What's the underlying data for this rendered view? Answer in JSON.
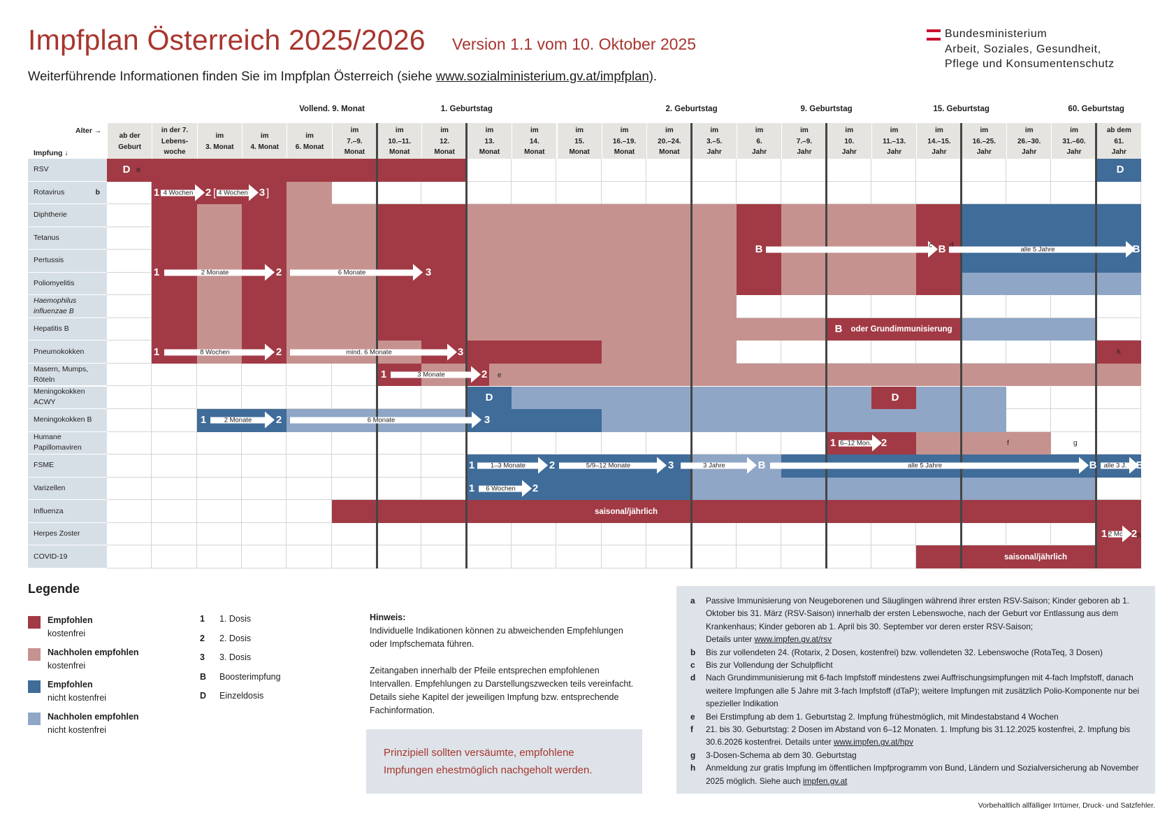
{
  "header": {
    "title": "Impfplan Österreich 2025/2026",
    "version": "Version 1.1 vom 10. Oktober 2025",
    "info_prefix": "Weiterführende Informationen finden Sie im Impfplan Österreich (siehe ",
    "info_link": "www.sozialministerium.gv.at/impfplan",
    "info_suffix": ")."
  },
  "ministry": {
    "line1": "Bundesministerium",
    "line2": "Arbeit, Soziales, Gesundheit,",
    "line3": "Pflege und Konsumentenschutz"
  },
  "axis": {
    "age": "Alter →",
    "vaccine": "Impfung ↓"
  },
  "milestones": [
    "Vollend. 9. Monat",
    "1. Geburtstag",
    "2. Geburtstag",
    "9. Geburtstag",
    "15. Geburtstag",
    "60. Geburtstag"
  ],
  "columns": [
    [
      "ab der",
      "Geburt"
    ],
    [
      "in der 7.",
      "Lebens-",
      "woche"
    ],
    [
      "im",
      "3. Monat"
    ],
    [
      "im",
      "4. Monat"
    ],
    [
      "im",
      "6. Monat"
    ],
    [
      "im",
      "7.–9.",
      "Monat"
    ],
    [
      "im",
      "10.–11.",
      "Monat"
    ],
    [
      "im",
      "12.",
      "Monat"
    ],
    [
      "im",
      "13.",
      "Monat"
    ],
    [
      "im",
      "14.",
      "Monat"
    ],
    [
      "im",
      "15.",
      "Monat"
    ],
    [
      "im",
      "16.–19.",
      "Monat"
    ],
    [
      "im",
      "20.–24.",
      "Monat"
    ],
    [
      "im",
      "3.–5.",
      "Jahr"
    ],
    [
      "im",
      "6.",
      "Jahr"
    ],
    [
      "im",
      "7.–9.",
      "Jahr"
    ],
    [
      "im",
      "10.",
      "Jahr"
    ],
    [
      "im",
      "11.–13.",
      "Jahr"
    ],
    [
      "im",
      "14.–15.",
      "Jahr"
    ],
    [
      "im",
      "16.–25.",
      "Jahr"
    ],
    [
      "im",
      "26.–30.",
      "Jahr"
    ],
    [
      "im",
      "31.–60.",
      "Jahr"
    ],
    [
      "ab dem",
      "61.",
      "Jahr"
    ]
  ],
  "rows": [
    {
      "label": "RSV",
      "note": "b_none"
    },
    {
      "label": "Rotavirus",
      "note": "b"
    },
    {
      "label": "Diphtherie"
    },
    {
      "label": "Tetanus"
    },
    {
      "label": "Pertussis"
    },
    {
      "label": "Poliomyelitis"
    },
    {
      "label": "Haemophilus influenzae B"
    },
    {
      "label": "Hepatitis B"
    },
    {
      "label": "Pneumokokken"
    },
    {
      "label": "Masern, Mumps, Röteln"
    },
    {
      "label": "Meningokokken ACWY"
    },
    {
      "label": "Meningokokken B"
    },
    {
      "label": "Humane Papillomaviren"
    },
    {
      "label": "FSME"
    },
    {
      "label": "Varizellen"
    },
    {
      "label": "Influenza"
    },
    {
      "label": "Herpes Zoster"
    },
    {
      "label": "COVID-19"
    }
  ],
  "schedule_text": {
    "w4": "4 Wochen",
    "m2": "2 Monate",
    "m6": "6 Monate",
    "w8": "8 Wochen",
    "mind6": "mind. 6 Monate",
    "m3": "3 Monate",
    "m1_3": "1–3 Monate",
    "m5_9_12": "5/9–12 Monate",
    "j3": "3 Jahre",
    "j5": "alle 5 Jahre",
    "j3short": "alle 3 J.",
    "w6": "6 Wochen",
    "mon6_12": "6–12 Mon.",
    "mon2": "2 Mon.",
    "oder": "oder Grundimmunisierung",
    "saisonal": "saisonal/jährlich"
  },
  "legend": {
    "title": "Legende",
    "items": [
      {
        "bold": "Empfohlen",
        "sub": "kostenfrei",
        "color": "#a13a45"
      },
      {
        "bold": "Nachholen empfohlen",
        "sub": "kostenfrei",
        "color": "#c6928f"
      },
      {
        "bold": "Empfohlen",
        "sub": "nicht kostenfrei",
        "color": "#3f6c99"
      },
      {
        "bold": "Nachholen empfohlen",
        "sub": "nicht kostenfrei",
        "color": "#8fa6c6"
      }
    ],
    "doses": [
      {
        "k": "1",
        "v": "1. Dosis"
      },
      {
        "k": "2",
        "v": "2. Dosis"
      },
      {
        "k": "3",
        "v": "3. Dosis"
      },
      {
        "k": "B",
        "v": "Boosterimpfung"
      },
      {
        "k": "D",
        "v": "Einzeldosis"
      }
    ]
  },
  "hinweis": {
    "title": "Hinweis:",
    "p1": "Individuelle Indikationen können zu abweichenden Empfehlungen oder Impfschemata führen.",
    "p2": "Zeitangaben innerhalb der Pfeile entsprechen empfohlenen Intervallen. Empfehlungen zu Darstellungszwecken teils vereinfacht. Details siehe Kapitel der jeweiligen Impfung bzw. entsprechende Fachinformation."
  },
  "catchup": "Prinzipiell sollten versäumte, empfohlene Impfungen ehestmöglich nachgeholt werden.",
  "footnotes": [
    {
      "k": "a",
      "t": "Passive Immunisierung von Neugeborenen und Säuglingen während ihrer ersten RSV-Saison; Kinder geboren ab 1. Oktober bis 31. März (RSV-Saison) innerhalb der ersten Lebenswoche, nach der Geburt vor Entlassung aus dem Krankenhaus; Kinder geboren ab 1. April bis 30. September vor deren erster RSV-Saison;",
      "t2": "Details unter ",
      "link": "www.impfen.gv.at/rsv"
    },
    {
      "k": "b",
      "t": "Bis zur vollendeten 24. (Rotarix, 2 Dosen, kostenfrei) bzw. vollendeten 32. Lebenswoche (RotaTeq, 3 Dosen)"
    },
    {
      "k": "c",
      "t": "Bis zur Vollendung der Schulpflicht"
    },
    {
      "k": "d",
      "t": "Nach Grundimmunisierung mit 6-fach Impfstoff mindestens zwei Auffrischungsimpfungen mit 4-fach Impfstoff, danach weitere Impfungen alle 5 Jahre mit 3-fach Impfstoff (dTaP); weitere Impfungen mit zusätzlich Polio-Komponente nur bei spezieller Indikation"
    },
    {
      "k": "e",
      "t": "Bei Erstimpfung ab dem 1. Geburtstag 2. Impfung frühestmöglich, mit Mindestabstand 4 Wochen"
    },
    {
      "k": "f",
      "t": "21. bis 30. Geburtstag: 2 Dosen im Abstand von 6–12 Monaten. 1. Impfung bis 31.12.2025 kostenfrei, 2. Impfung bis 30.6.2026 kostenfrei. Details unter ",
      "link": "www.impfen.gv.at/hpv"
    },
    {
      "k": "g",
      "t": "3-Dosen-Schema ab dem 30. Geburtstag"
    },
    {
      "k": "h",
      "t": "Anmeldung zur gratis Impfung im öffentlichen Impfprogramm von Bund, Ländern und Sozialversicherung ab November 2025 möglich. Siehe auch ",
      "link": "impfen.gv.at"
    }
  ],
  "disclaimer": "Vorbehaltlich allfälliger Irrtümer, Druck- und Satzfehler.",
  "colors": {
    "c1": "#a13a45",
    "c2": "#c6928f",
    "c3": "#3f6c99",
    "c4": "#8fa6c6"
  }
}
